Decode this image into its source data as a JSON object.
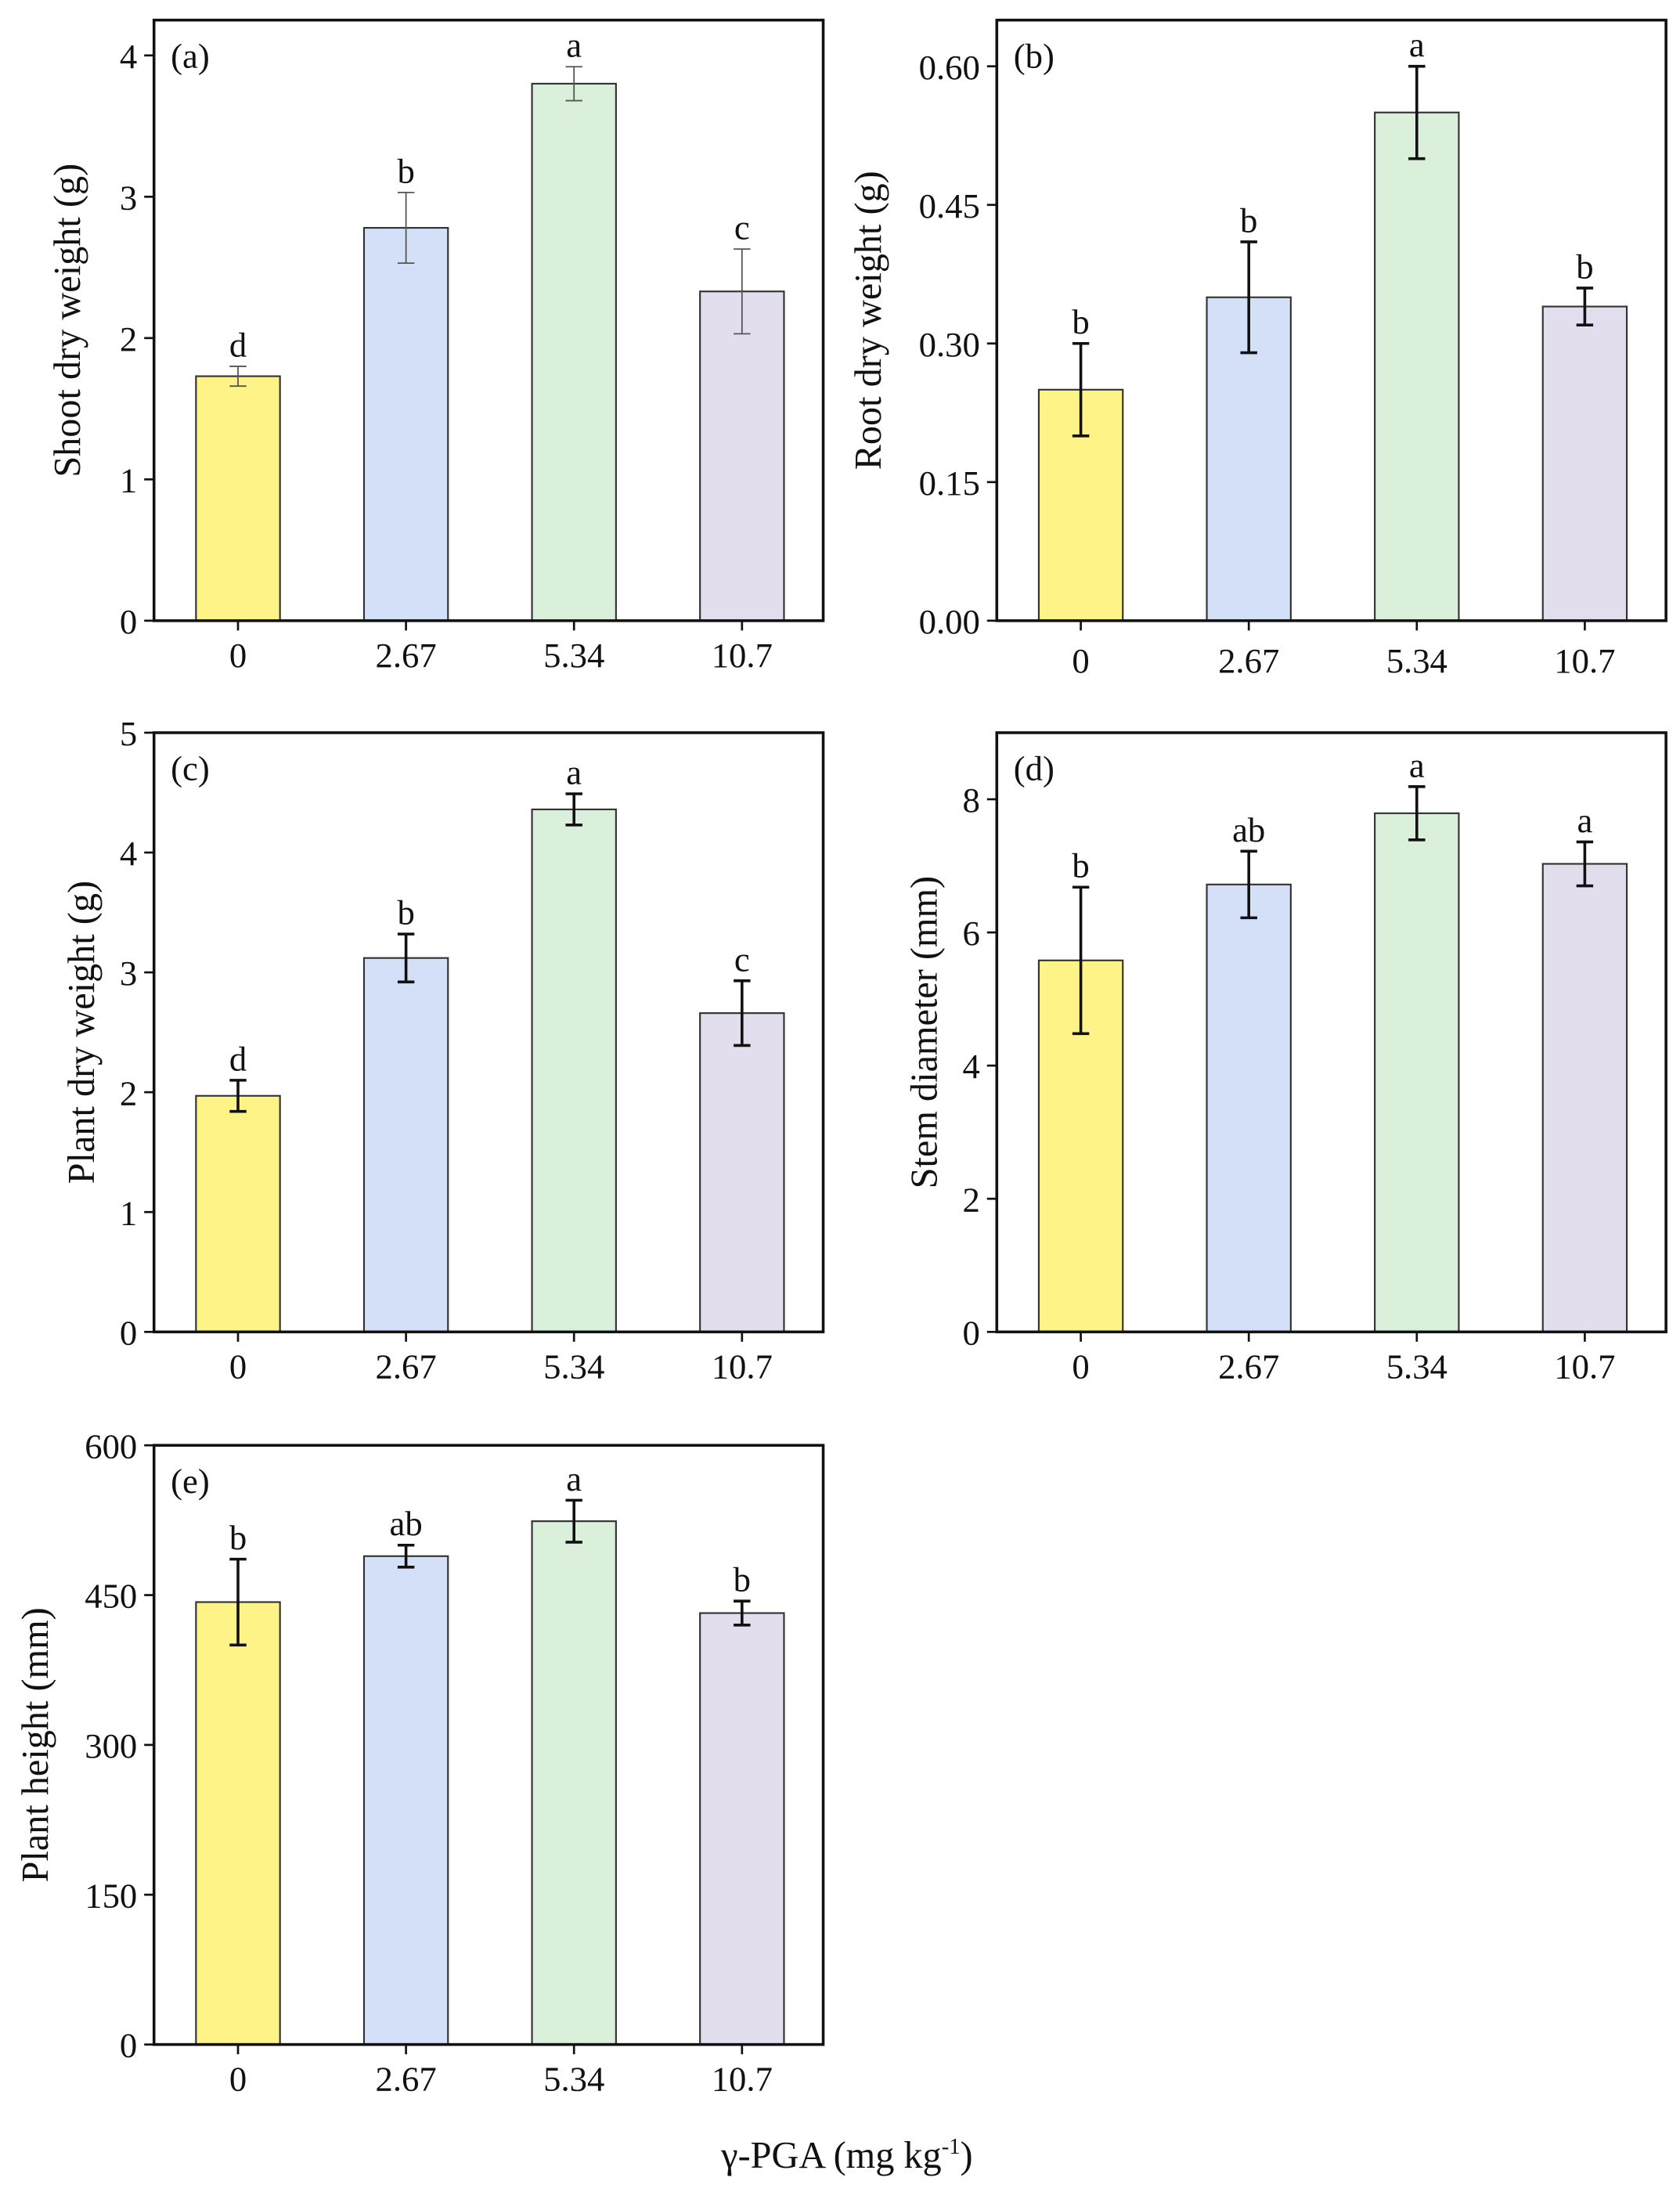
{
  "chart_data": [
    {
      "type": "bar",
      "panel_label": "(a)",
      "ylabel": "Shoot dry weight (g)",
      "categories": [
        "0",
        "2.67",
        "5.34",
        "10.7"
      ],
      "values": [
        1.73,
        2.78,
        3.8,
        2.33
      ],
      "errors": [
        0.07,
        0.25,
        0.12,
        0.3
      ],
      "letters": [
        "d",
        "b",
        "a",
        "c"
      ],
      "ylim": [
        0,
        4.25
      ],
      "yticks": [
        0,
        1,
        2,
        3,
        4
      ],
      "ytick_labels": [
        "0",
        "1",
        "2",
        "3",
        "4"
      ],
      "error_style": "thin-gray"
    },
    {
      "type": "bar",
      "panel_label": "(b)",
      "ylabel": "Root dry weight (g)",
      "categories": [
        "0",
        "2.67",
        "5.34",
        "10.7"
      ],
      "values": [
        0.25,
        0.35,
        0.55,
        0.34
      ],
      "errors": [
        0.05,
        0.06,
        0.05,
        0.02
      ],
      "letters": [
        "b",
        "b",
        "a",
        "b"
      ],
      "ylim": [
        0,
        0.65
      ],
      "yticks": [
        0,
        0.15,
        0.3,
        0.45,
        0.6
      ],
      "ytick_labels": [
        "0.00",
        "0.15",
        "0.30",
        "0.45",
        "0.60"
      ],
      "error_style": "black"
    },
    {
      "type": "bar",
      "panel_label": "(c)",
      "ylabel": "Plant dry weight (g)",
      "categories": [
        "0",
        "2.67",
        "5.34",
        "10.7"
      ],
      "values": [
        1.97,
        3.12,
        4.36,
        2.66
      ],
      "errors": [
        0.13,
        0.2,
        0.13,
        0.27
      ],
      "letters": [
        "d",
        "b",
        "a",
        "c"
      ],
      "ylim": [
        0,
        5
      ],
      "yticks": [
        0,
        1,
        2,
        3,
        4,
        5
      ],
      "ytick_labels": [
        "0",
        "1",
        "2",
        "3",
        "4",
        "5"
      ],
      "error_style": "black"
    },
    {
      "type": "bar",
      "panel_label": "(d)",
      "ylabel": "Stem diameter (mm)",
      "categories": [
        "0",
        "2.67",
        "5.34",
        "10.7"
      ],
      "values": [
        5.58,
        6.72,
        7.79,
        7.03
      ],
      "errors": [
        1.1,
        0.5,
        0.4,
        0.33
      ],
      "letters": [
        "b",
        "ab",
        "a",
        "a"
      ],
      "ylim": [
        0,
        9
      ],
      "yticks": [
        0,
        2,
        4,
        6,
        8
      ],
      "ytick_labels": [
        "0",
        "2",
        "4",
        "6",
        "8"
      ],
      "error_style": "black"
    },
    {
      "type": "bar",
      "panel_label": "(e)",
      "ylabel": "Plant height (mm)",
      "categories": [
        "0",
        "2.67",
        "5.34",
        "10.7"
      ],
      "values": [
        443,
        489,
        524,
        432
      ],
      "errors": [
        43,
        11,
        21,
        12
      ],
      "letters": [
        "b",
        "ab",
        "a",
        "b"
      ],
      "ylim": [
        0,
        600
      ],
      "yticks": [
        0,
        150,
        300,
        450,
        600
      ],
      "ytick_labels": [
        "0",
        "150",
        "300",
        "450",
        "600"
      ],
      "error_style": "black"
    }
  ],
  "shared_xlabel": "γ-PGA (mg kg",
  "shared_xlabel_sup": "-1",
  "shared_xlabel_end": ")",
  "bar_colors": [
    "#FEF387",
    "#D3E0F8",
    "#DAF0DB",
    "#E3DEEE"
  ],
  "grid": false
}
